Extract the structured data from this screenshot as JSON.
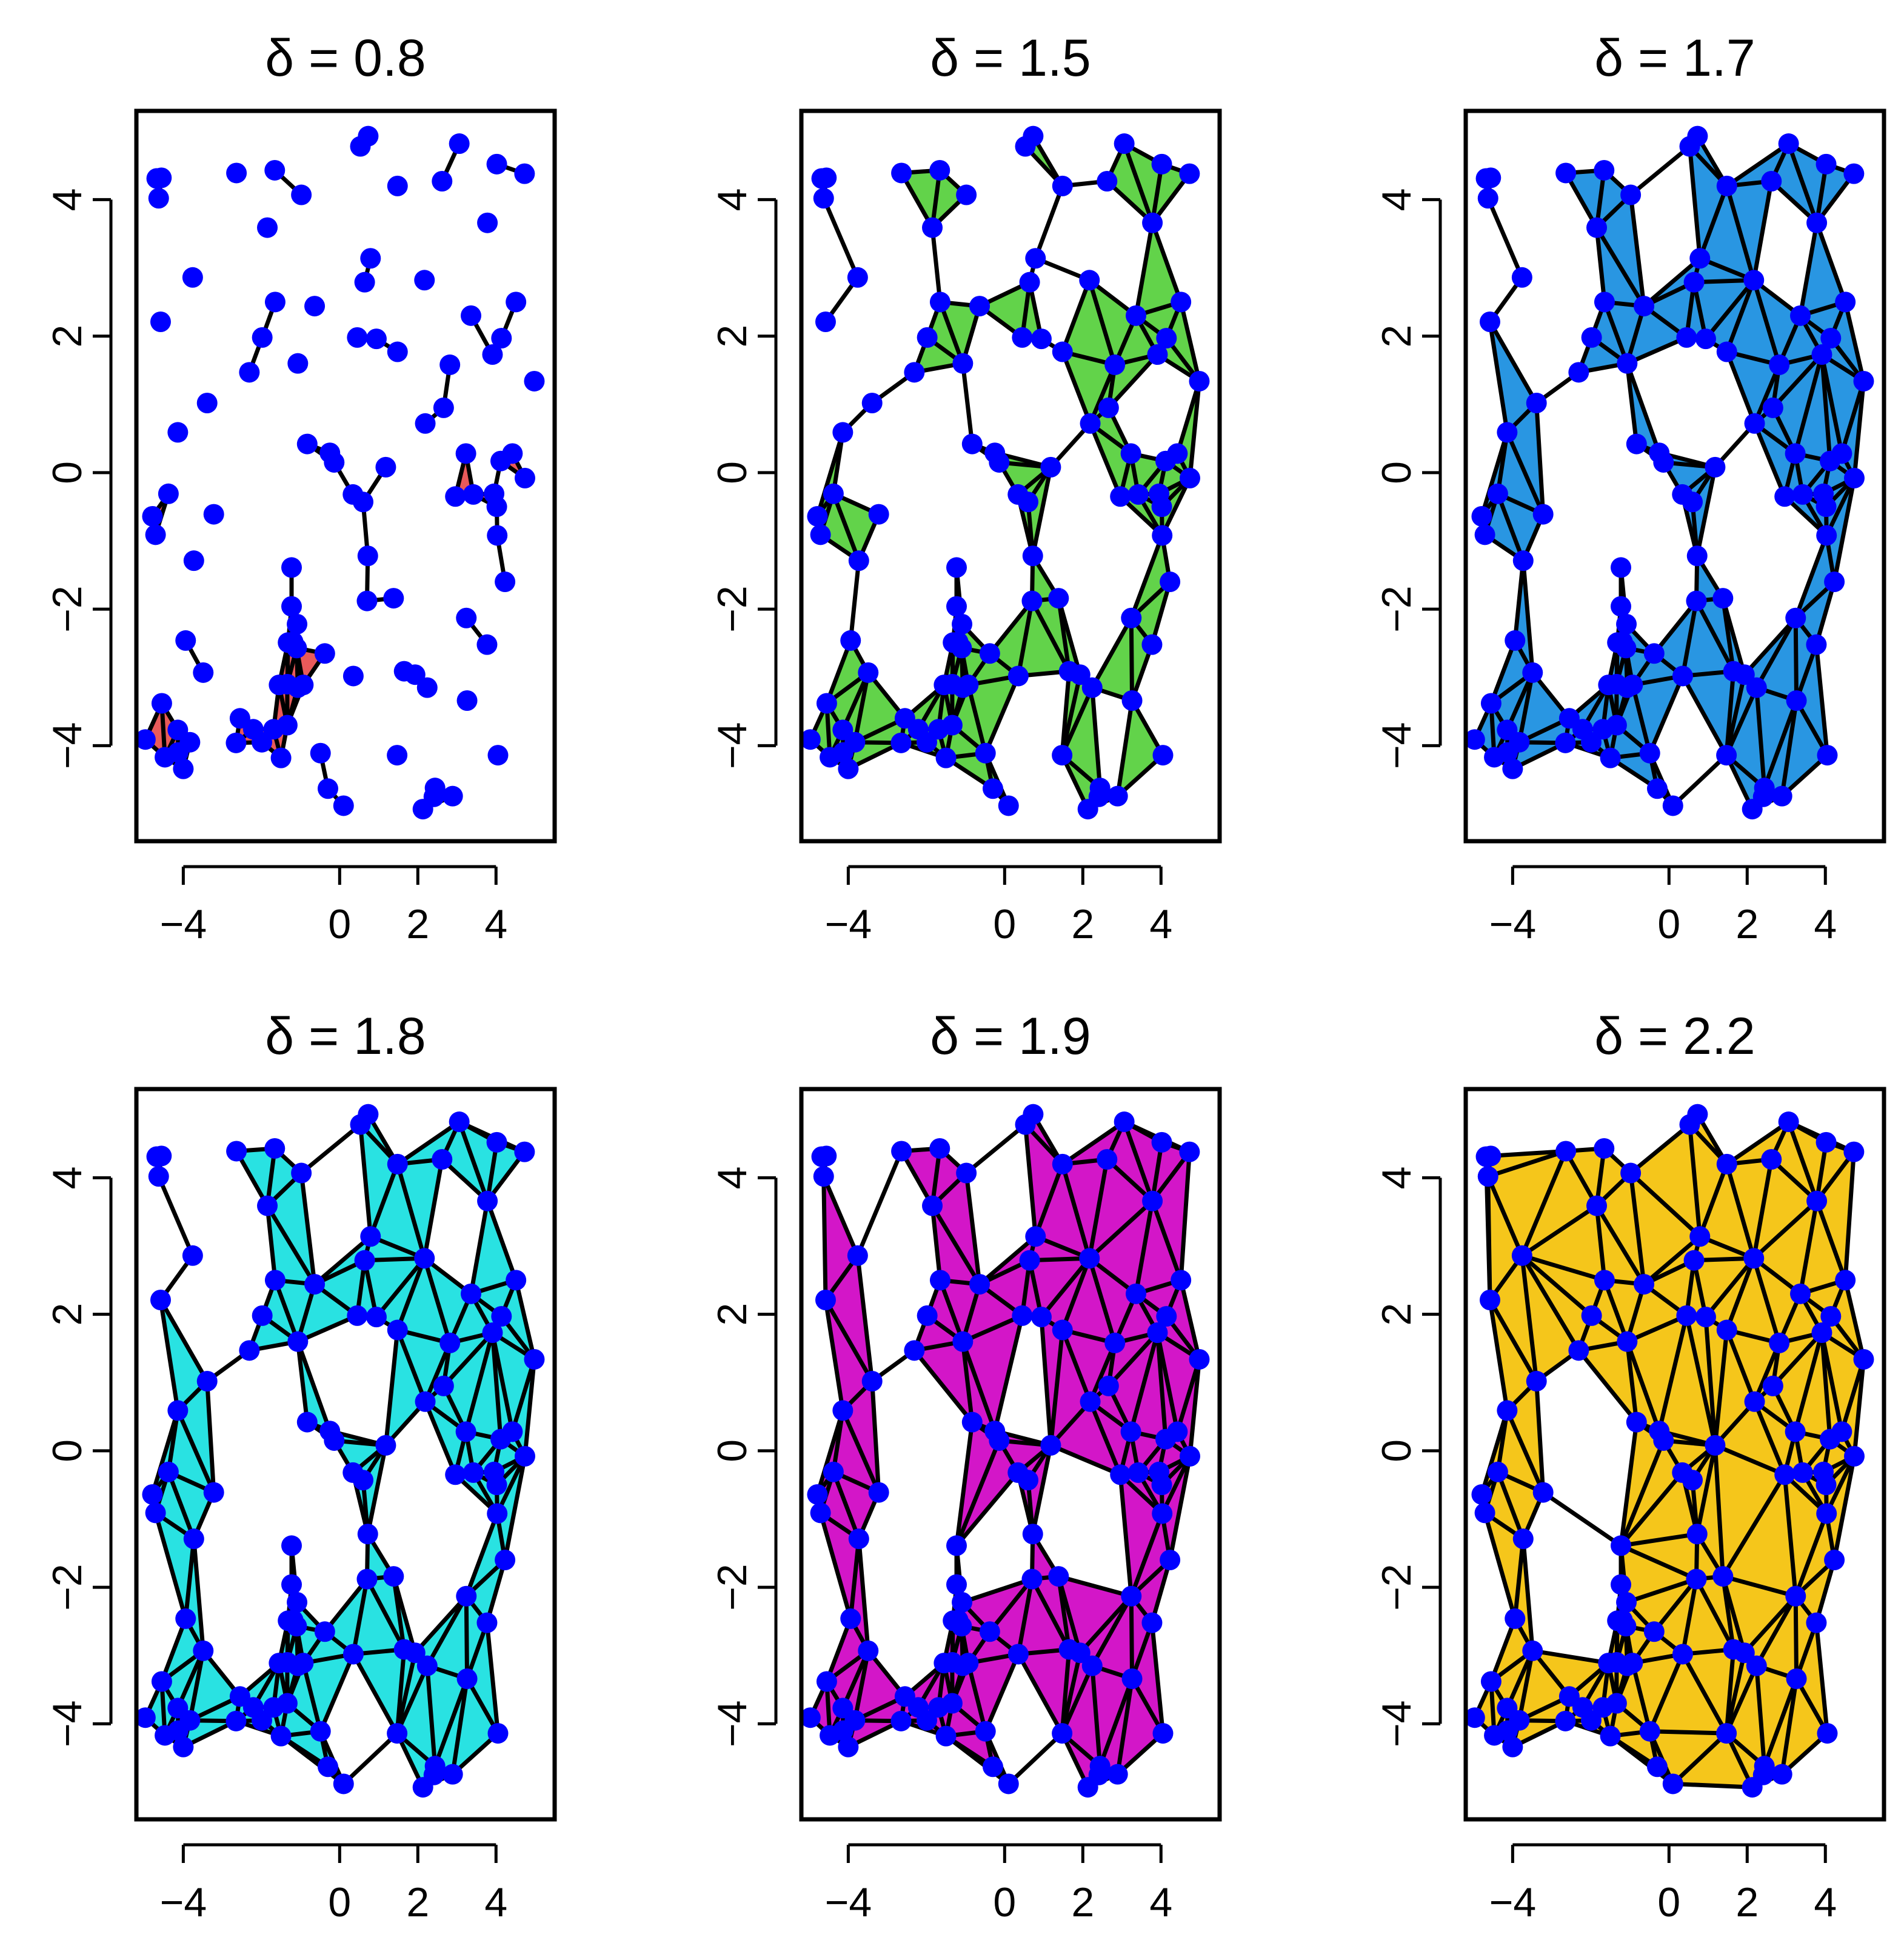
{
  "figure": {
    "points": [
      [
        -4.56,
        4.32
      ],
      [
        -4.63,
        4.02
      ],
      [
        -4.68,
        4.31
      ],
      [
        -1.66,
        4.43
      ],
      [
        -2.64,
        4.39
      ],
      [
        0.53,
        4.78
      ],
      [
        0.73,
        4.93
      ],
      [
        1.48,
        4.2
      ],
      [
        2.62,
        4.27
      ],
      [
        3.06,
        4.82
      ],
      [
        4.02,
        4.52
      ],
      [
        4.73,
        4.38
      ],
      [
        -1.85,
        3.59
      ],
      [
        -0.98,
        4.07
      ],
      [
        -3.76,
        2.86
      ],
      [
        0.79,
        3.14
      ],
      [
        0.64,
        2.79
      ],
      [
        2.17,
        2.82
      ],
      [
        3.78,
        3.66
      ],
      [
        -4.58,
        2.21
      ],
      [
        -1.65,
        2.5
      ],
      [
        -0.64,
        2.44
      ],
      [
        -1.98,
        1.98
      ],
      [
        -2.31,
        1.47
      ],
      [
        -1.07,
        1.6
      ],
      [
        0.45,
        1.98
      ],
      [
        0.94,
        1.96
      ],
      [
        1.48,
        1.77
      ],
      [
        2.82,
        1.58
      ],
      [
        3.36,
        2.3
      ],
      [
        4.14,
        1.97
      ],
      [
        4.51,
        2.5
      ],
      [
        3.91,
        1.73
      ],
      [
        4.98,
        1.34
      ],
      [
        -4.14,
        0.59
      ],
      [
        -3.39,
        1.02
      ],
      [
        -0.83,
        0.42
      ],
      [
        -0.25,
        0.29
      ],
      [
        -0.14,
        0.15
      ],
      [
        1.18,
        0.08
      ],
      [
        2.19,
        0.72
      ],
      [
        2.66,
        0.95
      ],
      [
        3.23,
        0.28
      ],
      [
        3.42,
        -0.32
      ],
      [
        2.96,
        -0.35
      ],
      [
        4.12,
        0.17
      ],
      [
        4.42,
        0.28
      ],
      [
        4.74,
        -0.08
      ],
      [
        3.95,
        -0.31
      ],
      [
        4.02,
        -0.5
      ],
      [
        0.34,
        -0.32
      ],
      [
        0.6,
        -0.43
      ],
      [
        -4.79,
        -0.64
      ],
      [
        -4.38,
        -0.31
      ],
      [
        -4.71,
        -0.91
      ],
      [
        -3.22,
        -0.61
      ],
      [
        -3.73,
        -1.29
      ],
      [
        0.72,
        -1.22
      ],
      [
        -1.23,
        -1.39
      ],
      [
        4.03,
        -0.92
      ],
      [
        4.23,
        -1.6
      ],
      [
        0.7,
        -1.88
      ],
      [
        1.38,
        -1.84
      ],
      [
        -3.94,
        -2.46
      ],
      [
        -1.23,
        -1.96
      ],
      [
        -1.09,
        -2.22
      ],
      [
        -1.32,
        -2.49
      ],
      [
        -1.19,
        -2.48
      ],
      [
        3.24,
        -2.13
      ],
      [
        3.77,
        -2.52
      ],
      [
        -0.38,
        -2.65
      ],
      [
        -3.49,
        -2.93
      ],
      [
        0.35,
        -2.98
      ],
      [
        1.65,
        -2.91
      ],
      [
        1.93,
        -2.96
      ],
      [
        2.24,
        -3.15
      ],
      [
        -1.1,
        -2.57
      ],
      [
        -1.55,
        -3.11
      ],
      [
        -1.34,
        -3.1
      ],
      [
        -1.07,
        -3.15
      ],
      [
        -0.93,
        -3.11
      ],
      [
        3.26,
        -3.34
      ],
      [
        -4.55,
        -3.38
      ],
      [
        -2.55,
        -3.6
      ],
      [
        -1.34,
        -3.7
      ],
      [
        -2.21,
        -3.76
      ],
      [
        -1.69,
        -3.76
      ],
      [
        -4.14,
        -3.77
      ],
      [
        -2.65,
        -3.96
      ],
      [
        -3.83,
        -3.95
      ],
      [
        -4.97,
        -3.91
      ],
      [
        -1.99,
        -3.95
      ],
      [
        -4.13,
        -4.1
      ],
      [
        -4.47,
        -4.17
      ],
      [
        -0.49,
        -4.11
      ],
      [
        1.47,
        -4.14
      ],
      [
        4.05,
        -4.14
      ],
      [
        -1.5,
        -4.18
      ],
      [
        -4.0,
        -4.34
      ],
      [
        -0.3,
        -4.63
      ],
      [
        2.44,
        -4.62
      ],
      [
        2.89,
        -4.74
      ],
      [
        2.41,
        -4.75
      ],
      [
        2.13,
        -4.93
      ],
      [
        0.1,
        -4.88
      ]
    ],
    "panels": [
      {
        "title": "δ = 0.8",
        "fill": "#e85a5a",
        "xlim": [
          -5.2,
          5.5
        ],
        "ylim": [
          -5.4,
          5.3
        ],
        "xticks": [
          "-4",
          "0",
          "2",
          "4"
        ],
        "xtick_values": [
          -4,
          0,
          2,
          4
        ],
        "yticks": [
          "-4",
          "-2",
          "0",
          "2",
          "4"
        ],
        "ytick_values": [
          -4,
          -2,
          0,
          2,
          4
        ]
      },
      {
        "title": "δ = 1.5",
        "fill": "#62d34a",
        "xlim": [
          -5.2,
          5.5
        ],
        "ylim": [
          -5.4,
          5.3
        ],
        "xticks": [
          "-4",
          "0",
          "2",
          "4"
        ],
        "xtick_values": [
          -4,
          0,
          2,
          4
        ],
        "yticks": [
          "-4",
          "-2",
          "0",
          "2",
          "4"
        ],
        "ytick_values": [
          -4,
          -2,
          0,
          2,
          4
        ]
      },
      {
        "title": "δ = 1.7",
        "fill": "#2996e2",
        "xlim": [
          -5.2,
          5.5
        ],
        "ylim": [
          -5.4,
          5.3
        ],
        "xticks": [
          "-4",
          "0",
          "2",
          "4"
        ],
        "xtick_values": [
          -4,
          0,
          2,
          4
        ],
        "yticks": [
          "-4",
          "-2",
          "0",
          "2",
          "4"
        ],
        "ytick_values": [
          -4,
          -2,
          0,
          2,
          4
        ]
      },
      {
        "title": "δ = 1.8",
        "fill": "#29e2e2",
        "xlim": [
          -5.2,
          5.5
        ],
        "ylim": [
          -5.4,
          5.3
        ],
        "xticks": [
          "-4",
          "0",
          "2",
          "4"
        ],
        "xtick_values": [
          -4,
          0,
          2,
          4
        ],
        "yticks": [
          "-4",
          "-2",
          "0",
          "2",
          "4"
        ],
        "ytick_values": [
          -4,
          -2,
          0,
          2,
          4
        ]
      },
      {
        "title": "δ = 1.9",
        "fill": "#d316c8",
        "xlim": [
          -5.2,
          5.5
        ],
        "ylim": [
          -5.4,
          5.3
        ],
        "xticks": [
          "-4",
          "0",
          "2",
          "4"
        ],
        "xtick_values": [
          -4,
          0,
          2,
          4
        ],
        "yticks": [
          "-4",
          "-2",
          "0",
          "2",
          "4"
        ],
        "ytick_values": [
          -4,
          -2,
          0,
          2,
          4
        ]
      },
      {
        "title": "δ = 2.2",
        "fill": "#f5c61b",
        "xlim": [
          -5.2,
          5.5
        ],
        "ylim": [
          -5.4,
          5.3
        ],
        "xticks": [
          "-4",
          "0",
          "2",
          "4"
        ],
        "xtick_values": [
          -4,
          0,
          2,
          4
        ],
        "yticks": [
          "-4",
          "-2",
          "0",
          "2",
          "4"
        ],
        "ytick_values": [
          -4,
          -2,
          0,
          2,
          4
        ]
      }
    ]
  },
  "chart_data": [
    {
      "type": "scatter",
      "title": "δ = 0.8",
      "xlim": [
        -5.2,
        5.5
      ],
      "ylim": [
        -5.4,
        5.3
      ],
      "delta": 0.8,
      "fill_color": "#e85a5a",
      "xticks": [
        -4,
        0,
        2,
        4
      ],
      "yticks": [
        -4,
        -2,
        0,
        2,
        4
      ],
      "point_color": "#0000ff",
      "grid": false
    },
    {
      "type": "scatter",
      "title": "δ = 1.5",
      "xlim": [
        -5.2,
        5.5
      ],
      "ylim": [
        -5.4,
        5.3
      ],
      "delta": 1.5,
      "fill_color": "#62d34a",
      "xticks": [
        -4,
        0,
        2,
        4
      ],
      "yticks": [
        -4,
        -2,
        0,
        2,
        4
      ],
      "point_color": "#0000ff",
      "grid": false
    },
    {
      "type": "scatter",
      "title": "δ = 1.7",
      "xlim": [
        -5.2,
        5.5
      ],
      "ylim": [
        -5.4,
        5.3
      ],
      "delta": 1.7,
      "fill_color": "#2996e2",
      "xticks": [
        -4,
        0,
        2,
        4
      ],
      "yticks": [
        -4,
        -2,
        0,
        2,
        4
      ],
      "point_color": "#0000ff",
      "grid": false
    },
    {
      "type": "scatter",
      "title": "δ = 1.8",
      "xlim": [
        -5.2,
        5.5
      ],
      "ylim": [
        -5.4,
        5.3
      ],
      "delta": 1.8,
      "fill_color": "#29e2e2",
      "xticks": [
        -4,
        0,
        2,
        4
      ],
      "yticks": [
        -4,
        -2,
        0,
        2,
        4
      ],
      "point_color": "#0000ff",
      "grid": false
    },
    {
      "type": "scatter",
      "title": "δ = 1.9",
      "xlim": [
        -5.2,
        5.5
      ],
      "ylim": [
        -5.4,
        5.3
      ],
      "delta": 1.9,
      "fill_color": "#d316c8",
      "xticks": [
        -4,
        0,
        2,
        4
      ],
      "yticks": [
        -4,
        -2,
        0,
        2,
        4
      ],
      "point_color": "#0000ff",
      "grid": false
    },
    {
      "type": "scatter",
      "title": "δ = 2.2",
      "xlim": [
        -5.2,
        5.5
      ],
      "ylim": [
        -5.4,
        5.3
      ],
      "delta": 2.2,
      "fill_color": "#f5c61b",
      "xticks": [
        -4,
        0,
        2,
        4
      ],
      "yticks": [
        -4,
        -2,
        0,
        2,
        4
      ],
      "point_color": "#0000ff",
      "grid": false
    }
  ]
}
